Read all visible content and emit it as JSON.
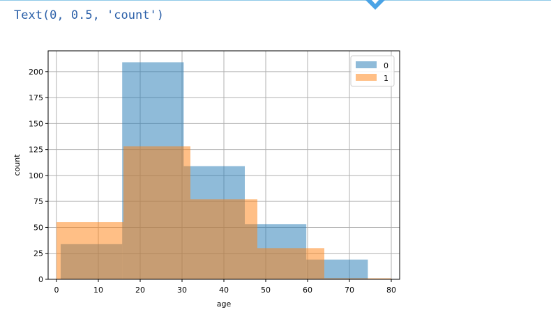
{
  "output_text": "Text(0, 0.5, 'count')",
  "colors": {
    "series0": "#1f77b4",
    "series1": "#ff7f0e",
    "grid": "#b0b0b0",
    "output_text": "#2a5fa8"
  },
  "chart_data": {
    "type": "bar",
    "subtype": "overlapping-histogram",
    "xlabel": "age",
    "ylabel": "count",
    "xlim": [
      -2,
      82
    ],
    "ylim": [
      0,
      220
    ],
    "xticks": [
      0,
      10,
      20,
      30,
      40,
      50,
      60,
      70,
      80
    ],
    "yticks": [
      0,
      25,
      50,
      75,
      100,
      125,
      150,
      175,
      200
    ],
    "grid": true,
    "legend_position": "top-right",
    "alpha": 0.5,
    "series": [
      {
        "name": "0",
        "color": "#1f77b4",
        "bins": [
          {
            "x0": 1,
            "x1": 15.7,
            "value": 34
          },
          {
            "x0": 15.7,
            "x1": 30.4,
            "value": 209
          },
          {
            "x0": 30.4,
            "x1": 45.0,
            "value": 109
          },
          {
            "x0": 45.0,
            "x1": 59.7,
            "value": 53
          },
          {
            "x0": 59.7,
            "x1": 74.4,
            "value": 19
          }
        ]
      },
      {
        "name": "1",
        "color": "#ff7f0e",
        "bins": [
          {
            "x0": 0,
            "x1": 16,
            "value": 55
          },
          {
            "x0": 16,
            "x1": 32,
            "value": 128
          },
          {
            "x0": 32,
            "x1": 48,
            "value": 77
          },
          {
            "x0": 48,
            "x1": 64,
            "value": 30
          },
          {
            "x0": 64,
            "x1": 80,
            "value": 1
          }
        ]
      }
    ]
  }
}
